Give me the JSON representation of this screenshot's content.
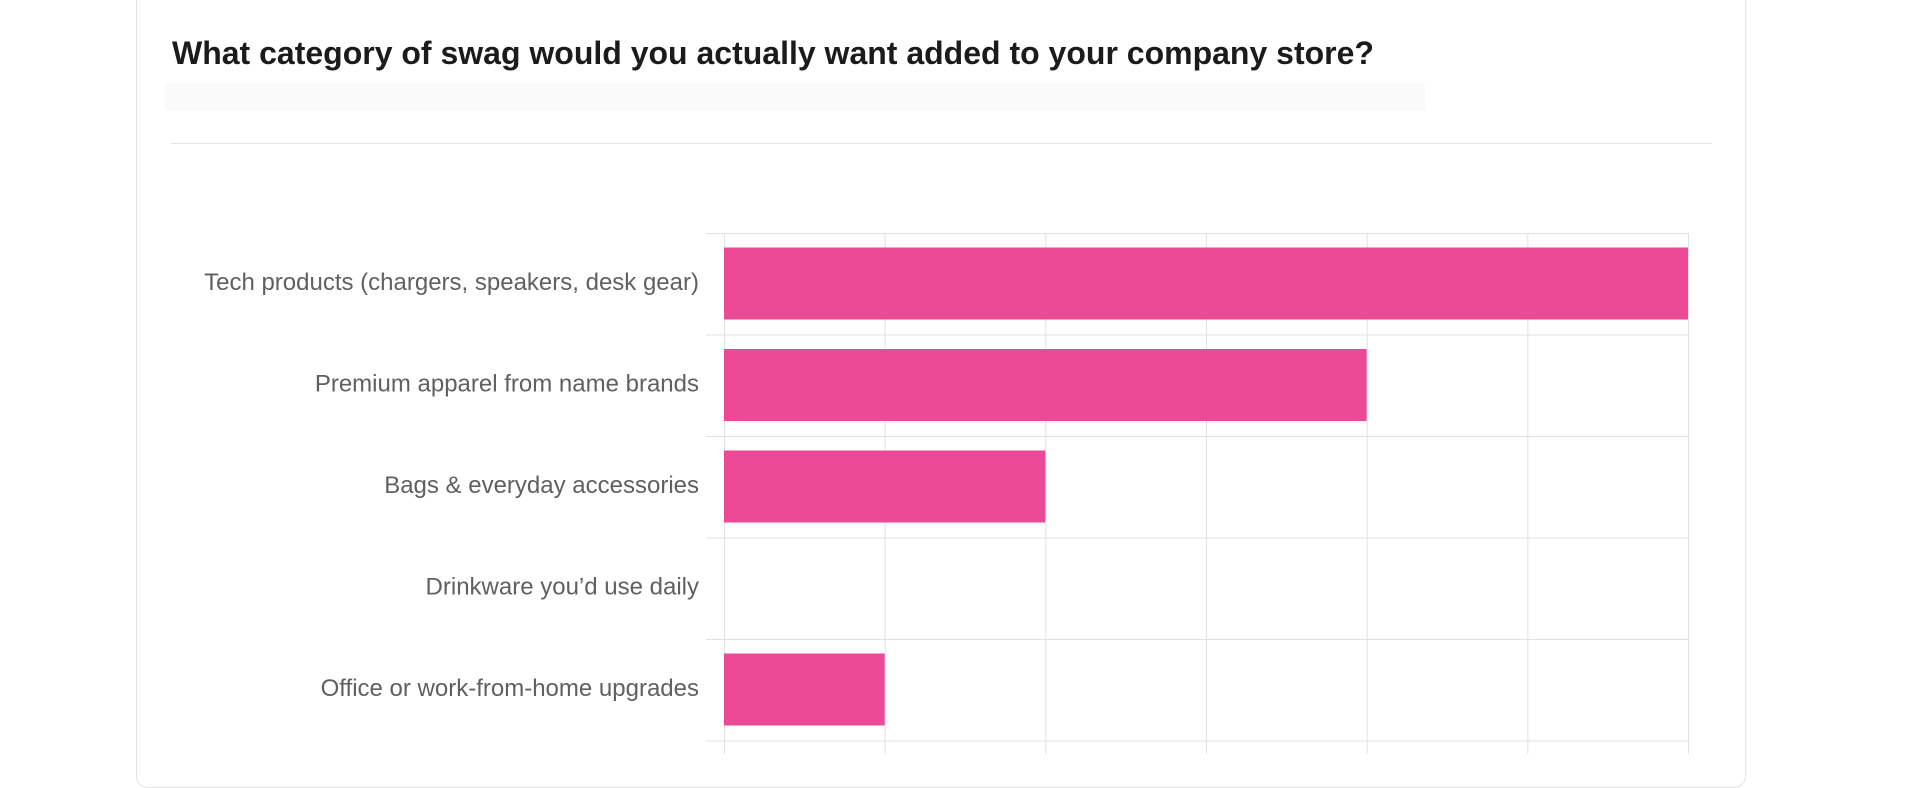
{
  "question": {
    "title": "What category of swag would you actually want added to your company store?"
  },
  "colors": {
    "bar": "#ec4a96",
    "grid": "#e1e1e1",
    "category_text": "#606060"
  },
  "chart_data": {
    "type": "bar",
    "orientation": "horizontal",
    "categories": [
      "Tech products (chargers, speakers, desk gear)",
      "Premium apparel from name brands",
      "Bags & everyday accessories",
      "Drinkware you’d use daily",
      "Office or work-from-home upgrades"
    ],
    "values": [
      6,
      4,
      2,
      0,
      1
    ],
    "xlim": [
      0,
      6
    ],
    "grid": true,
    "legend": "none",
    "title": "",
    "xlabel": "",
    "ylabel": ""
  }
}
